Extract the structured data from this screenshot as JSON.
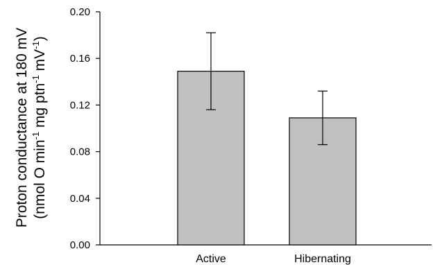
{
  "chart_data": {
    "type": "bar",
    "categories": [
      "Active",
      "Hibernating"
    ],
    "values": [
      0.149,
      0.109
    ],
    "error_upper": [
      0.182,
      0.132
    ],
    "error_lower": [
      0.116,
      0.086
    ],
    "ylim": [
      0,
      0.2
    ],
    "yticks": [
      "0.00",
      "0.04",
      "0.08",
      "0.12",
      "0.16",
      "0.20"
    ],
    "ylabel_line1": "Proton conductance at 180 mV",
    "ylabel_line2": {
      "part1": "(nmol O min",
      "sup1": "-1",
      "part2": " mg ptn",
      "sup2": "-1",
      "part3": " mV",
      "sup3": "-1",
      "part4": ")"
    },
    "bar_color": "#c0c0c0",
    "grid": false
  }
}
